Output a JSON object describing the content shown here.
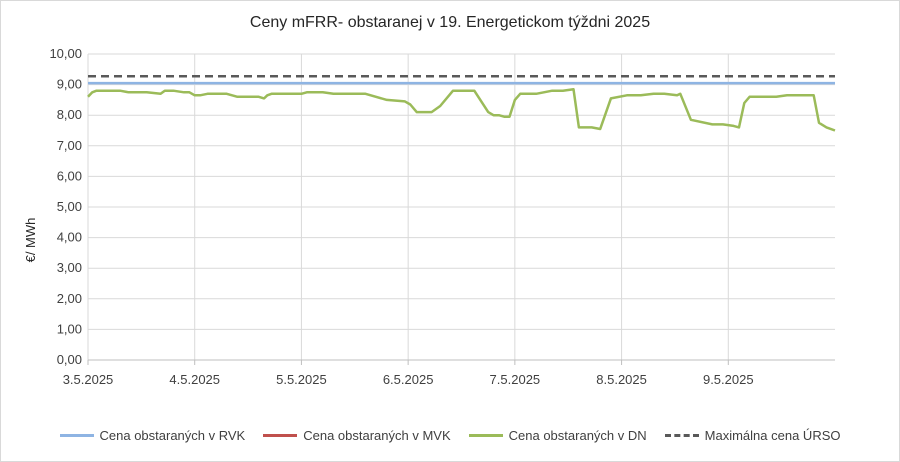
{
  "chart_data": {
    "type": "line",
    "title": "Ceny mFRR- obstaranej v 19. Energetickom týždni 2025",
    "ylabel": "€/ MWh",
    "xlabel": "",
    "ylim": [
      0,
      10
    ],
    "yticks": [
      "0,00",
      "1,00",
      "2,00",
      "3,00",
      "4,00",
      "5,00",
      "6,00",
      "7,00",
      "8,00",
      "9,00",
      "10,00"
    ],
    "x_tick_labels": [
      "3.5.2025",
      "4.5.2025",
      "5.5.2025",
      "6.5.2025",
      "7.5.2025",
      "8.5.2025",
      "9.5.2025"
    ],
    "x_range_days": [
      0,
      7
    ],
    "grid": true,
    "legend_position": "bottom",
    "series": [
      {
        "name": "Cena obstaraných v RVK",
        "color": "#8eb4e3",
        "style": "solid",
        "x": [
          0,
          7
        ],
        "values": [
          9.05,
          9.05
        ]
      },
      {
        "name": "Cena obstaraných v MVK",
        "color": "#c0504d",
        "style": "solid",
        "x": [],
        "values": []
      },
      {
        "name": "Cena obstaraných v DN",
        "color": "#9bbb59",
        "style": "solid",
        "x": [
          0,
          0.04,
          0.08,
          0.13,
          0.2,
          0.3,
          0.38,
          0.42,
          0.55,
          0.68,
          0.72,
          0.76,
          0.8,
          0.9,
          0.95,
          1.0,
          1.05,
          1.12,
          1.2,
          1.3,
          1.4,
          1.5,
          1.6,
          1.65,
          1.68,
          1.72,
          1.8,
          1.9,
          2.0,
          2.05,
          2.2,
          2.3,
          2.45,
          2.6,
          2.8,
          2.97,
          3.02,
          3.08,
          3.15,
          3.22,
          3.3,
          3.42,
          3.5,
          3.55,
          3.62,
          3.75,
          3.8,
          3.85,
          3.9,
          3.95,
          4.0,
          4.05,
          4.1,
          4.2,
          4.35,
          4.45,
          4.55,
          4.6,
          4.65,
          4.72,
          4.8,
          4.9,
          5.05,
          5.12,
          5.18,
          5.3,
          5.4,
          5.52,
          5.55,
          5.65,
          5.85,
          5.95,
          6.05,
          6.1,
          6.15,
          6.2,
          6.3,
          6.45,
          6.55,
          6.65,
          6.8,
          6.85,
          6.92,
          7.0
        ],
        "values": [
          8.6,
          8.75,
          8.8,
          8.8,
          8.8,
          8.8,
          8.75,
          8.75,
          8.75,
          8.7,
          8.8,
          8.8,
          8.8,
          8.75,
          8.75,
          8.65,
          8.65,
          8.7,
          8.7,
          8.7,
          8.6,
          8.6,
          8.6,
          8.55,
          8.65,
          8.7,
          8.7,
          8.7,
          8.7,
          8.75,
          8.75,
          8.7,
          8.7,
          8.7,
          8.5,
          8.45,
          8.35,
          8.1,
          8.1,
          8.1,
          8.3,
          8.8,
          8.8,
          8.8,
          8.8,
          8.1,
          8.0,
          8.0,
          7.95,
          7.95,
          8.5,
          8.7,
          8.7,
          8.7,
          8.8,
          8.8,
          8.85,
          7.6,
          7.6,
          7.6,
          7.55,
          8.55,
          8.65,
          8.65,
          8.65,
          8.7,
          8.7,
          8.65,
          8.7,
          7.85,
          7.7,
          7.7,
          7.65,
          7.6,
          8.4,
          8.6,
          8.6,
          8.6,
          8.65,
          8.65,
          8.65,
          7.75,
          7.6,
          7.5
        ]
      },
      {
        "name": "Maximálna cena ÚRSO",
        "color": "#595959",
        "style": "dashed",
        "x": [
          0,
          7
        ],
        "values": [
          9.27,
          9.27
        ]
      }
    ]
  }
}
